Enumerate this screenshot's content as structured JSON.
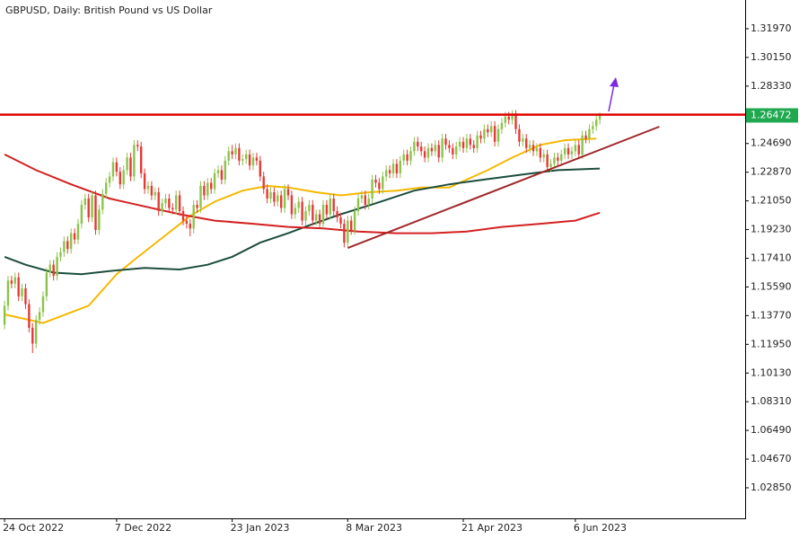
{
  "chart_data": {
    "type": "candlestick",
    "title": "GBPUSD, Daily:  British Pound vs US Dollar",
    "up_color": "#8bc34a",
    "down_color": "#e53935",
    "ylim": [
      1.00913,
      1.33793
    ],
    "xlim": [
      -1.3,
      211.5
    ],
    "yticks": [
      {
        "value": 1.3197,
        "label": "1.31970"
      },
      {
        "value": 1.3015,
        "label": "1.30150"
      },
      {
        "value": 1.2833,
        "label": "1.28330"
      },
      {
        "value": 1.2469,
        "label": "1.24690"
      },
      {
        "value": 1.2287,
        "label": "1.22870"
      },
      {
        "value": 1.2105,
        "label": "1.21050"
      },
      {
        "value": 1.1923,
        "label": "1.19230"
      },
      {
        "value": 1.1741,
        "label": "1.17410"
      },
      {
        "value": 1.1559,
        "label": "1.15590"
      },
      {
        "value": 1.1377,
        "label": "1.13770"
      },
      {
        "value": 1.1195,
        "label": "1.11950"
      },
      {
        "value": 1.1013,
        "label": "1.10130"
      },
      {
        "value": 1.0831,
        "label": "1.08310"
      },
      {
        "value": 1.0649,
        "label": "1.06490"
      },
      {
        "value": 1.0467,
        "label": "1.04670"
      },
      {
        "value": 1.0285,
        "label": "1.02850"
      }
    ],
    "xticks": [
      {
        "value": 0,
        "label": "24 Oct 2022"
      },
      {
        "value": 32,
        "label": "7 Dec 2022"
      },
      {
        "value": 65,
        "label": "23 Jan 2023"
      },
      {
        "value": 98,
        "label": "8 Mar 2023"
      },
      {
        "value": 131,
        "label": "21 Apr 2023"
      },
      {
        "value": 163,
        "label": "6 Jun 2023"
      }
    ],
    "current_price": 1.26472,
    "current_price_color": "#1fa84f",
    "hline": {
      "value": 1.2652,
      "color": "#e00000"
    },
    "trendline": {
      "color": "#a0282c",
      "x": [
        98,
        187
      ],
      "values": [
        1.1806,
        1.2576
      ]
    },
    "lines": [
      {
        "color": "#f5b800",
        "x": [
          0,
          11,
          24,
          32,
          37,
          45,
          53,
          60,
          68,
          75,
          81,
          89,
          96,
          104,
          112,
          119,
          127,
          132,
          138,
          145,
          153,
          160,
          169
        ],
        "values": [
          1.1385,
          1.133,
          1.144,
          1.164,
          1.173,
          1.187,
          1.201,
          1.21,
          1.217,
          1.22,
          1.219,
          1.216,
          1.214,
          1.216,
          1.217,
          1.219,
          1.219,
          1.224,
          1.23,
          1.238,
          1.246,
          1.249,
          1.25
        ]
      },
      {
        "color": "#1b4d3e",
        "x": [
          0,
          6,
          14,
          22,
          30,
          40,
          50,
          58,
          65,
          73,
          81,
          87,
          96,
          106,
          117,
          127,
          137,
          147,
          158,
          170
        ],
        "values": [
          1.175,
          1.17,
          1.165,
          1.164,
          1.166,
          1.168,
          1.167,
          1.17,
          1.175,
          1.184,
          1.19,
          1.195,
          1.202,
          1.209,
          1.217,
          1.221,
          1.224,
          1.227,
          1.23,
          1.231
        ]
      },
      {
        "color": "#d42020",
        "x": [
          0,
          9,
          19,
          30,
          40,
          50,
          60,
          71,
          81,
          91,
          101,
          112,
          122,
          132,
          142,
          153,
          163,
          170
        ],
        "values": [
          1.24,
          1.23,
          1.221,
          1.212,
          1.207,
          1.202,
          1.198,
          1.196,
          1.194,
          1.193,
          1.191,
          1.19,
          1.19,
          1.191,
          1.194,
          1.196,
          1.198,
          1.203
        ]
      }
    ],
    "ohlc": [
      [
        1.132,
        1.147,
        1.129,
        1.144
      ],
      [
        1.144,
        1.163,
        1.141,
        1.16
      ],
      [
        1.16,
        1.163,
        1.155,
        1.158
      ],
      [
        1.158,
        1.165,
        1.155,
        1.162
      ],
      [
        1.162,
        1.165,
        1.147,
        1.15
      ],
      [
        1.15,
        1.158,
        1.147,
        1.155
      ],
      [
        1.155,
        1.158,
        1.142,
        1.145
      ],
      [
        1.145,
        1.148,
        1.127,
        1.13
      ],
      [
        1.13,
        1.133,
        1.114,
        1.12
      ],
      [
        1.12,
        1.138,
        1.117,
        1.135
      ],
      [
        1.135,
        1.143,
        1.132,
        1.14
      ],
      [
        1.14,
        1.153,
        1.137,
        1.15
      ],
      [
        1.15,
        1.168,
        1.147,
        1.165
      ],
      [
        1.165,
        1.173,
        1.162,
        1.17
      ],
      [
        1.17,
        1.173,
        1.16,
        1.163
      ],
      [
        1.163,
        1.178,
        1.16,
        1.175
      ],
      [
        1.175,
        1.181,
        1.172,
        1.178
      ],
      [
        1.178,
        1.188,
        1.175,
        1.185
      ],
      [
        1.185,
        1.188,
        1.177,
        1.18
      ],
      [
        1.18,
        1.193,
        1.177,
        1.19
      ],
      [
        1.19,
        1.193,
        1.183,
        1.186
      ],
      [
        1.186,
        1.199,
        1.183,
        1.196
      ],
      [
        1.196,
        1.211,
        1.193,
        1.208
      ],
      [
        1.208,
        1.215,
        1.205,
        1.212
      ],
      [
        1.212,
        1.215,
        1.197,
        1.2
      ],
      [
        1.2,
        1.217,
        1.197,
        1.214
      ],
      [
        1.214,
        1.217,
        1.189,
        1.192
      ],
      [
        1.192,
        1.208,
        1.189,
        1.205
      ],
      [
        1.205,
        1.218,
        1.202,
        1.215
      ],
      [
        1.215,
        1.225,
        1.212,
        1.222
      ],
      [
        1.222,
        1.229,
        1.219,
        1.226
      ],
      [
        1.226,
        1.238,
        1.223,
        1.235
      ],
      [
        1.235,
        1.238,
        1.226,
        1.229
      ],
      [
        1.229,
        1.232,
        1.218,
        1.221
      ],
      [
        1.221,
        1.233,
        1.218,
        1.23
      ],
      [
        1.23,
        1.241,
        1.227,
        1.238
      ],
      [
        1.238,
        1.241,
        1.223,
        1.226
      ],
      [
        1.226,
        1.249,
        1.223,
        1.246
      ],
      [
        1.246,
        1.249,
        1.242,
        1.245
      ],
      [
        1.245,
        1.248,
        1.225,
        1.228
      ],
      [
        1.228,
        1.231,
        1.215,
        1.218
      ],
      [
        1.218,
        1.223,
        1.215,
        1.22
      ],
      [
        1.22,
        1.223,
        1.211,
        1.214
      ],
      [
        1.214,
        1.219,
        1.211,
        1.216
      ],
      [
        1.216,
        1.219,
        1.201,
        1.204
      ],
      [
        1.204,
        1.212,
        1.201,
        1.209
      ],
      [
        1.209,
        1.215,
        1.206,
        1.212
      ],
      [
        1.212,
        1.215,
        1.203,
        1.206
      ],
      [
        1.206,
        1.209,
        1.202,
        1.205
      ],
      [
        1.205,
        1.217,
        1.202,
        1.214
      ],
      [
        1.214,
        1.217,
        1.201,
        1.204
      ],
      [
        1.204,
        1.207,
        1.195,
        1.198
      ],
      [
        1.198,
        1.201,
        1.193,
        1.196
      ],
      [
        1.196,
        1.199,
        1.188,
        1.193
      ],
      [
        1.193,
        1.211,
        1.19,
        1.208
      ],
      [
        1.208,
        1.211,
        1.203,
        1.206
      ],
      [
        1.206,
        1.223,
        1.203,
        1.22
      ],
      [
        1.22,
        1.223,
        1.211,
        1.214
      ],
      [
        1.214,
        1.225,
        1.211,
        1.222
      ],
      [
        1.222,
        1.225,
        1.215,
        1.218
      ],
      [
        1.218,
        1.231,
        1.215,
        1.228
      ],
      [
        1.228,
        1.233,
        1.225,
        1.23
      ],
      [
        1.23,
        1.233,
        1.221,
        1.224
      ],
      [
        1.224,
        1.239,
        1.221,
        1.236
      ],
      [
        1.236,
        1.245,
        1.233,
        1.242
      ],
      [
        1.242,
        1.246,
        1.237,
        1.24
      ],
      [
        1.24,
        1.247,
        1.237,
        1.244
      ],
      [
        1.244,
        1.247,
        1.233,
        1.236
      ],
      [
        1.236,
        1.24,
        1.233,
        1.237
      ],
      [
        1.237,
        1.243,
        1.234,
        1.24
      ],
      [
        1.24,
        1.243,
        1.23,
        1.233
      ],
      [
        1.233,
        1.241,
        1.23,
        1.238
      ],
      [
        1.238,
        1.241,
        1.233,
        1.236
      ],
      [
        1.236,
        1.239,
        1.223,
        1.226
      ],
      [
        1.226,
        1.229,
        1.215,
        1.218
      ],
      [
        1.218,
        1.221,
        1.209,
        1.212
      ],
      [
        1.212,
        1.219,
        1.209,
        1.216
      ],
      [
        1.216,
        1.219,
        1.207,
        1.21
      ],
      [
        1.21,
        1.217,
        1.207,
        1.214
      ],
      [
        1.214,
        1.217,
        1.203,
        1.206
      ],
      [
        1.206,
        1.221,
        1.203,
        1.218
      ],
      [
        1.218,
        1.221,
        1.211,
        1.214
      ],
      [
        1.214,
        1.217,
        1.199,
        1.202
      ],
      [
        1.202,
        1.209,
        1.199,
        1.206
      ],
      [
        1.206,
        1.213,
        1.203,
        1.21
      ],
      [
        1.21,
        1.213,
        1.195,
        1.198
      ],
      [
        1.198,
        1.207,
        1.195,
        1.204
      ],
      [
        1.204,
        1.211,
        1.201,
        1.208
      ],
      [
        1.208,
        1.211,
        1.195,
        1.198
      ],
      [
        1.198,
        1.205,
        1.195,
        1.202
      ],
      [
        1.202,
        1.205,
        1.193,
        1.196
      ],
      [
        1.196,
        1.211,
        1.193,
        1.208
      ],
      [
        1.208,
        1.211,
        1.199,
        1.202
      ],
      [
        1.202,
        1.215,
        1.199,
        1.212
      ],
      [
        1.212,
        1.215,
        1.201,
        1.204
      ],
      [
        1.204,
        1.207,
        1.197,
        1.2
      ],
      [
        1.2,
        1.203,
        1.193,
        1.196
      ],
      [
        1.196,
        1.199,
        1.181,
        1.184
      ],
      [
        1.184,
        1.201,
        1.181,
        1.198
      ],
      [
        1.198,
        1.201,
        1.189,
        1.192
      ],
      [
        1.192,
        1.207,
        1.189,
        1.204
      ],
      [
        1.204,
        1.215,
        1.201,
        1.212
      ],
      [
        1.212,
        1.217,
        1.209,
        1.214
      ],
      [
        1.214,
        1.217,
        1.205,
        1.208
      ],
      [
        1.208,
        1.215,
        1.205,
        1.212
      ],
      [
        1.212,
        1.227,
        1.209,
        1.224
      ],
      [
        1.224,
        1.227,
        1.219,
        1.222
      ],
      [
        1.222,
        1.225,
        1.215,
        1.218
      ],
      [
        1.218,
        1.229,
        1.215,
        1.226
      ],
      [
        1.226,
        1.233,
        1.223,
        1.23
      ],
      [
        1.23,
        1.233,
        1.225,
        1.228
      ],
      [
        1.228,
        1.237,
        1.225,
        1.234
      ],
      [
        1.234,
        1.237,
        1.225,
        1.228
      ],
      [
        1.228,
        1.239,
        1.225,
        1.236
      ],
      [
        1.236,
        1.243,
        1.233,
        1.24
      ],
      [
        1.24,
        1.243,
        1.233,
        1.236
      ],
      [
        1.236,
        1.245,
        1.233,
        1.242
      ],
      [
        1.242,
        1.251,
        1.239,
        1.248
      ],
      [
        1.248,
        1.251,
        1.242,
        1.245
      ],
      [
        1.245,
        1.248,
        1.239,
        1.242
      ],
      [
        1.242,
        1.245,
        1.235,
        1.238
      ],
      [
        1.238,
        1.247,
        1.235,
        1.244
      ],
      [
        1.244,
        1.247,
        1.239,
        1.242
      ],
      [
        1.242,
        1.249,
        1.239,
        1.246
      ],
      [
        1.246,
        1.249,
        1.235,
        1.238
      ],
      [
        1.238,
        1.253,
        1.235,
        1.25
      ],
      [
        1.25,
        1.253,
        1.243,
        1.246
      ],
      [
        1.246,
        1.249,
        1.241,
        1.244
      ],
      [
        1.244,
        1.247,
        1.237,
        1.24
      ],
      [
        1.24,
        1.248,
        1.237,
        1.245
      ],
      [
        1.245,
        1.251,
        1.242,
        1.248
      ],
      [
        1.248,
        1.251,
        1.241,
        1.244
      ],
      [
        1.244,
        1.253,
        1.241,
        1.25
      ],
      [
        1.25,
        1.253,
        1.243,
        1.246
      ],
      [
        1.246,
        1.249,
        1.241,
        1.244
      ],
      [
        1.244,
        1.255,
        1.241,
        1.252
      ],
      [
        1.252,
        1.255,
        1.247,
        1.25
      ],
      [
        1.25,
        1.259,
        1.247,
        1.256
      ],
      [
        1.256,
        1.259,
        1.251,
        1.254
      ],
      [
        1.254,
        1.261,
        1.251,
        1.258
      ],
      [
        1.258,
        1.261,
        1.245,
        1.248
      ],
      [
        1.248,
        1.259,
        1.245,
        1.256
      ],
      [
        1.256,
        1.263,
        1.253,
        1.26
      ],
      [
        1.26,
        1.267,
        1.257,
        1.264
      ],
      [
        1.264,
        1.267,
        1.259,
        1.262
      ],
      [
        1.262,
        1.268,
        1.259,
        1.266
      ],
      [
        1.266,
        1.268,
        1.253,
        1.256
      ],
      [
        1.256,
        1.259,
        1.245,
        1.248
      ],
      [
        1.248,
        1.253,
        1.245,
        1.25
      ],
      [
        1.25,
        1.253,
        1.241,
        1.244
      ],
      [
        1.244,
        1.249,
        1.241,
        1.246
      ],
      [
        1.246,
        1.249,
        1.239,
        1.242
      ],
      [
        1.242,
        1.247,
        1.239,
        1.244
      ],
      [
        1.244,
        1.247,
        1.235,
        1.238
      ],
      [
        1.238,
        1.243,
        1.235,
        1.24
      ],
      [
        1.24,
        1.243,
        1.229,
        1.232
      ],
      [
        1.232,
        1.237,
        1.229,
        1.234
      ],
      [
        1.234,
        1.241,
        1.231,
        1.238
      ],
      [
        1.238,
        1.241,
        1.233,
        1.236
      ],
      [
        1.236,
        1.243,
        1.233,
        1.24
      ],
      [
        1.24,
        1.247,
        1.237,
        1.244
      ],
      [
        1.244,
        1.247,
        1.237,
        1.24
      ],
      [
        1.24,
        1.245,
        1.237,
        1.242
      ],
      [
        1.242,
        1.249,
        1.239,
        1.246
      ],
      [
        1.246,
        1.249,
        1.237,
        1.24
      ],
      [
        1.24,
        1.255,
        1.237,
        1.252
      ],
      [
        1.252,
        1.255,
        1.247,
        1.25
      ],
      [
        1.25,
        1.259,
        1.247,
        1.256
      ],
      [
        1.256,
        1.261,
        1.253,
        1.258
      ],
      [
        1.258,
        1.265,
        1.255,
        1.262
      ],
      [
        1.262,
        1.2665,
        1.259,
        1.26472
      ]
    ]
  }
}
